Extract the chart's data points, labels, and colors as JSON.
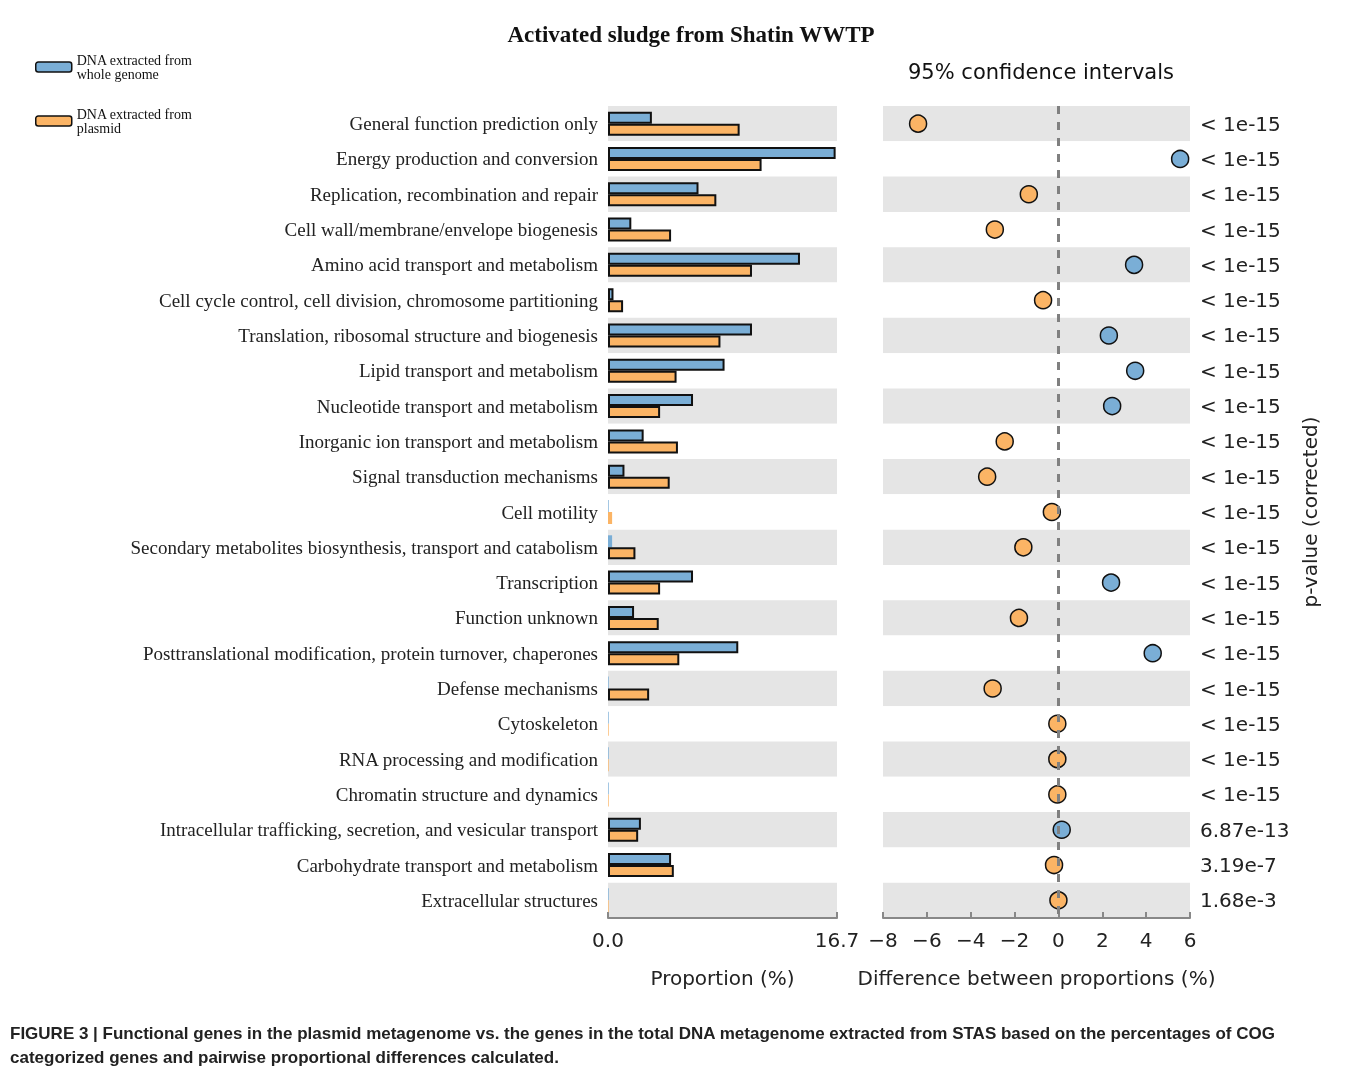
{
  "chart_data": [
    {
      "type": "bar",
      "orientation": "horizontal",
      "title": "Activated sludge from Shatin WWTP",
      "xlabel": "Proportion (%)",
      "categories": [
        "General function prediction only",
        "Energy production and conversion",
        "Replication, recombination and repair",
        "Cell wall/membrane/envelope biogenesis",
        "Amino acid transport and metabolism",
        "Cell cycle control, cell division, chromosome partitioning",
        "Translation, ribosomal structure and biogenesis",
        "Lipid transport and metabolism",
        "Nucleotide transport and metabolism",
        "Inorganic ion transport and metabolism",
        "Signal transduction mechanisms",
        "Cell motility",
        "Secondary metabolites biosynthesis, transport and catabolism",
        "Transcription",
        "Function unknown",
        "Posttranslational modification, protein turnover, chaperones",
        "Defense mechanisms",
        "Cytoskeleton",
        "RNA processing and modification",
        "Chromatin structure and dynamics",
        "Intracellular trafficking, secretion, and vesicular transport",
        "Carbohydrate transport and metabolism",
        "Extracellular structures"
      ],
      "series": [
        {
          "name": "DNA extracted from whole genome",
          "color": "#7aaed6",
          "values": [
            3.2,
            16.6,
            6.6,
            1.7,
            14.0,
            0.4,
            10.5,
            8.5,
            6.2,
            2.6,
            1.2,
            0.05,
            0.3,
            6.2,
            1.9,
            9.5,
            0.05,
            0.05,
            0.05,
            0.05,
            2.4,
            4.6,
            0.05
          ]
        },
        {
          "name": "DNA extracted from plasmid",
          "color": "#fbb465",
          "values": [
            9.6,
            11.2,
            7.9,
            4.6,
            10.5,
            1.1,
            8.2,
            5.0,
            3.8,
            5.1,
            4.5,
            0.3,
            2.0,
            3.8,
            3.7,
            5.2,
            3.0,
            0.05,
            0.05,
            0.05,
            2.2,
            4.8,
            0.05
          ]
        }
      ],
      "xlim": [
        0,
        16.7
      ],
      "xticks": [
        {
          "value": 0,
          "label": "0.0"
        },
        16.7
      ],
      "legend": "top left",
      "annotations": [
        "FIGURE 3 | Functional genes in the plasmid metagenome vs. the genes in the total DNA metagenome extracted from STAS based on the percentages of COG categorized genes and pairwise proportional differences calculated."
      ]
    },
    {
      "type": "scatter",
      "orientation": "horizontal",
      "title": "95% confidence intervals",
      "xlabel": "Difference between proportions (%)",
      "y2label": "p-value (corrected)",
      "categories": [
        null,
        null,
        null,
        null,
        null,
        null,
        null,
        null,
        null,
        null,
        null,
        null,
        null,
        null,
        null,
        null,
        null,
        null,
        null,
        null,
        null,
        null,
        null
      ],
      "y2_categories": [
        "< 1e-15",
        "< 1e-15",
        "< 1e-15",
        "< 1e-15",
        "< 1e-15",
        "< 1e-15",
        "< 1e-15",
        "< 1e-15",
        "< 1e-15",
        "< 1e-15",
        "< 1e-15",
        "< 1e-15",
        "< 1e-15",
        "< 1e-15",
        "< 1e-15",
        "< 1e-15",
        "< 1e-15",
        "< 1e-15",
        "< 1e-15",
        "< 1e-15",
        "6.87e-13",
        "3.19e-7",
        "1.68e-3"
      ],
      "series": [
        {
          "color": "#7aaed6",
          "values": [
            null,
            5.55,
            null,
            null,
            3.45,
            null,
            2.3,
            3.5,
            2.45,
            null,
            null,
            null,
            null,
            2.4,
            null,
            4.3,
            null,
            null,
            null,
            null,
            0.15,
            null,
            null
          ]
        },
        {
          "color": "#fbb465",
          "values": [
            -6.4,
            null,
            -1.35,
            -2.9,
            null,
            -0.7,
            null,
            null,
            null,
            -2.45,
            -3.25,
            -0.3,
            -1.6,
            null,
            -1.8,
            null,
            -3.0,
            -0.05,
            -0.05,
            -0.05,
            null,
            -0.2,
            0
          ]
        }
      ],
      "xlim": [
        -8,
        6
      ],
      "xticks": [
        {
          "value": -8,
          "label": "−8"
        },
        {
          "value": -6,
          "label": "−6"
        },
        {
          "value": -4,
          "label": "−4"
        },
        {
          "value": -2,
          "label": "−2"
        },
        0,
        2,
        4,
        6
      ],
      "ref_lines": [
        {
          "axis": "x",
          "value": 0,
          "label": null,
          "color": "#808080",
          "line_style": "dashed"
        }
      ],
      "marker": "circle"
    }
  ]
}
